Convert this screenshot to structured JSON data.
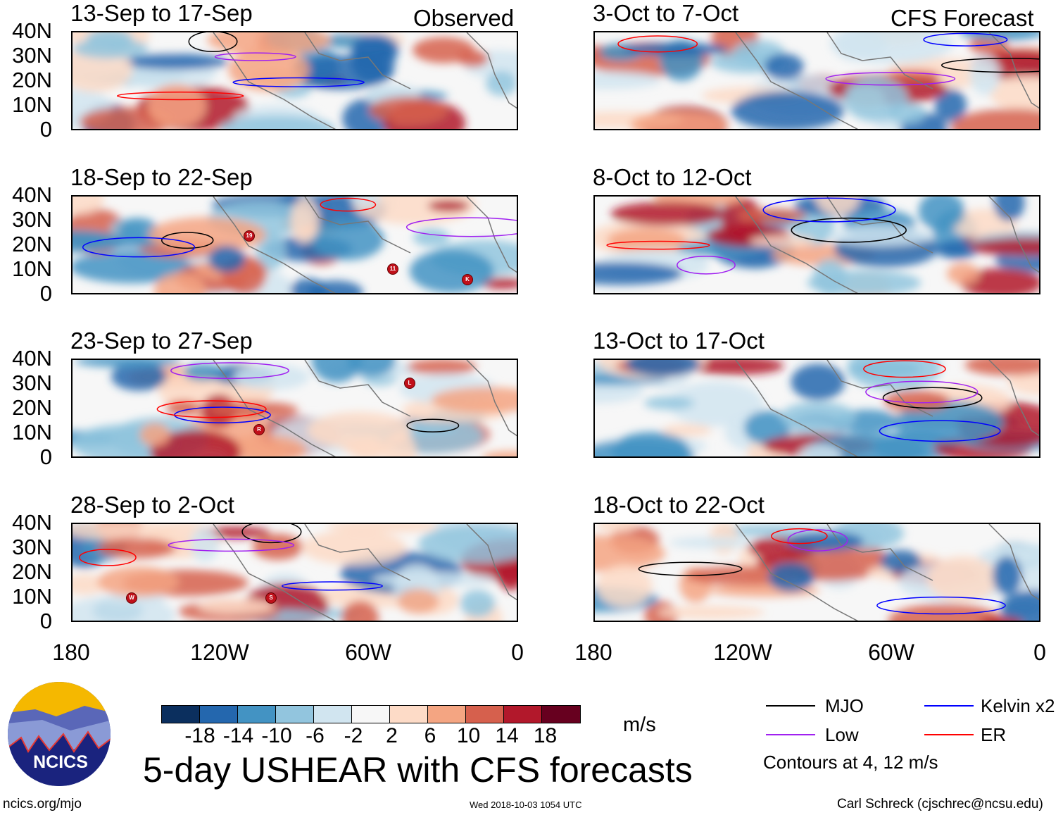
{
  "title": "5-day USHEAR with CFS forecasts",
  "observed_label": "Observed",
  "forecast_label": "CFS Forecast",
  "lat_labels": [
    "40N",
    "30N",
    "20N",
    "10N",
    "0"
  ],
  "lon_labels": [
    "180",
    "120W",
    "60W",
    "0"
  ],
  "panels_left": [
    {
      "title": "13-Sep to 17-Sep",
      "storms": []
    },
    {
      "title": "18-Sep to 22-Sep",
      "storms": [
        "19",
        "11",
        "K"
      ]
    },
    {
      "title": "23-Sep to 27-Sep",
      "storms": [
        "L",
        "R"
      ]
    },
    {
      "title": "28-Sep to 2-Oct",
      "storms": [
        "W",
        "S"
      ]
    }
  ],
  "panels_right": [
    {
      "title": "3-Oct to 7-Oct"
    },
    {
      "title": "8-Oct to 12-Oct"
    },
    {
      "title": "13-Oct to 17-Oct"
    },
    {
      "title": "18-Oct to 22-Oct"
    }
  ],
  "colorbar": {
    "ticks": [
      "-18",
      "-14",
      "-10",
      "-6",
      "-2",
      "2",
      "6",
      "10",
      "14",
      "18"
    ],
    "units": "m/s",
    "colors": [
      "#0b2f5e",
      "#2467ae",
      "#4393c3",
      "#92c5de",
      "#d1e5f0",
      "#f7f7f7",
      "#fddbc7",
      "#f4a582",
      "#d6604d",
      "#b2182b",
      "#67001f"
    ]
  },
  "legend": {
    "items": [
      {
        "label": "MJO",
        "color": "#000000"
      },
      {
        "label": "Kelvin x2",
        "color": "#0000ff"
      },
      {
        "label": "Low",
        "color": "#a020f0"
      },
      {
        "label": "ER",
        "color": "#ff0000"
      }
    ],
    "note": "Contours at 4, 12 m/s"
  },
  "logo_text": "NCICS",
  "footer": {
    "url": "ncics.org/mjo",
    "timestamp": "Wed 2018-10-03 1054 UTC",
    "credit": "Carl Schreck (cjschrec@ncsu.edu)"
  }
}
